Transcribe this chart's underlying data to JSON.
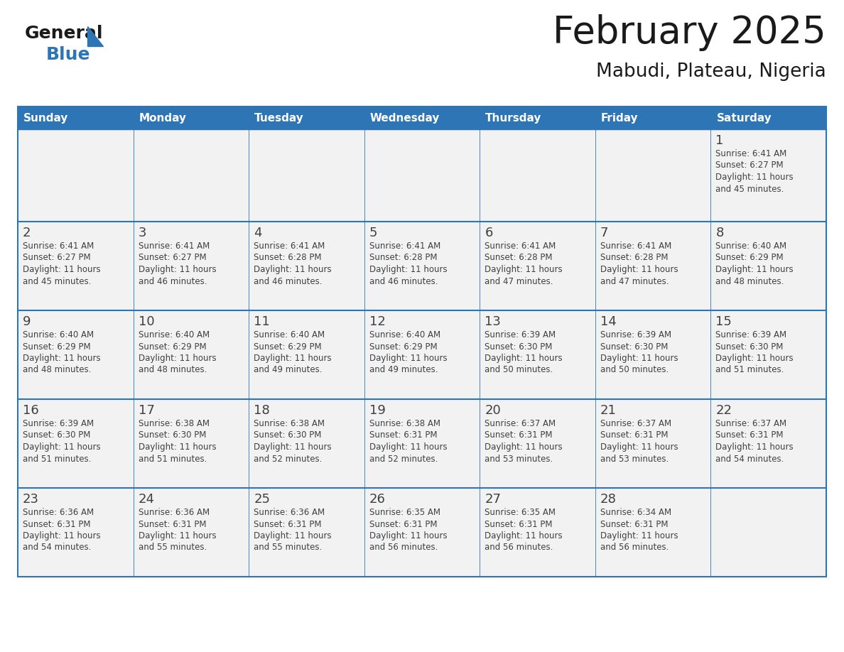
{
  "title": "February 2025",
  "subtitle": "Mabudi, Plateau, Nigeria",
  "days_of_week": [
    "Sunday",
    "Monday",
    "Tuesday",
    "Wednesday",
    "Thursday",
    "Friday",
    "Saturday"
  ],
  "header_bg": "#2E75B6",
  "header_text": "#FFFFFF",
  "cell_bg": "#F2F2F2",
  "cell_bg_white": "#FFFFFF",
  "border_color": "#2E75B6",
  "text_color": "#404040",
  "day_number_color": "#404040",
  "title_color": "#1a1a1a",
  "logo_black": "#1a1a1a",
  "logo_blue": "#2E75B6",
  "calendar_data": [
    [
      null,
      null,
      null,
      null,
      null,
      null,
      {
        "day": 1,
        "sunrise": "6:41 AM",
        "sunset": "6:27 PM",
        "daylight": "11 hours and 45 minutes."
      }
    ],
    [
      {
        "day": 2,
        "sunrise": "6:41 AM",
        "sunset": "6:27 PM",
        "daylight": "11 hours and 45 minutes."
      },
      {
        "day": 3,
        "sunrise": "6:41 AM",
        "sunset": "6:27 PM",
        "daylight": "11 hours and 46 minutes."
      },
      {
        "day": 4,
        "sunrise": "6:41 AM",
        "sunset": "6:28 PM",
        "daylight": "11 hours and 46 minutes."
      },
      {
        "day": 5,
        "sunrise": "6:41 AM",
        "sunset": "6:28 PM",
        "daylight": "11 hours and 46 minutes."
      },
      {
        "day": 6,
        "sunrise": "6:41 AM",
        "sunset": "6:28 PM",
        "daylight": "11 hours and 47 minutes."
      },
      {
        "day": 7,
        "sunrise": "6:41 AM",
        "sunset": "6:28 PM",
        "daylight": "11 hours and 47 minutes."
      },
      {
        "day": 8,
        "sunrise": "6:40 AM",
        "sunset": "6:29 PM",
        "daylight": "11 hours and 48 minutes."
      }
    ],
    [
      {
        "day": 9,
        "sunrise": "6:40 AM",
        "sunset": "6:29 PM",
        "daylight": "11 hours and 48 minutes."
      },
      {
        "day": 10,
        "sunrise": "6:40 AM",
        "sunset": "6:29 PM",
        "daylight": "11 hours and 48 minutes."
      },
      {
        "day": 11,
        "sunrise": "6:40 AM",
        "sunset": "6:29 PM",
        "daylight": "11 hours and 49 minutes."
      },
      {
        "day": 12,
        "sunrise": "6:40 AM",
        "sunset": "6:29 PM",
        "daylight": "11 hours and 49 minutes."
      },
      {
        "day": 13,
        "sunrise": "6:39 AM",
        "sunset": "6:30 PM",
        "daylight": "11 hours and 50 minutes."
      },
      {
        "day": 14,
        "sunrise": "6:39 AM",
        "sunset": "6:30 PM",
        "daylight": "11 hours and 50 minutes."
      },
      {
        "day": 15,
        "sunrise": "6:39 AM",
        "sunset": "6:30 PM",
        "daylight": "11 hours and 51 minutes."
      }
    ],
    [
      {
        "day": 16,
        "sunrise": "6:39 AM",
        "sunset": "6:30 PM",
        "daylight": "11 hours and 51 minutes."
      },
      {
        "day": 17,
        "sunrise": "6:38 AM",
        "sunset": "6:30 PM",
        "daylight": "11 hours and 51 minutes."
      },
      {
        "day": 18,
        "sunrise": "6:38 AM",
        "sunset": "6:30 PM",
        "daylight": "11 hours and 52 minutes."
      },
      {
        "day": 19,
        "sunrise": "6:38 AM",
        "sunset": "6:31 PM",
        "daylight": "11 hours and 52 minutes."
      },
      {
        "day": 20,
        "sunrise": "6:37 AM",
        "sunset": "6:31 PM",
        "daylight": "11 hours and 53 minutes."
      },
      {
        "day": 21,
        "sunrise": "6:37 AM",
        "sunset": "6:31 PM",
        "daylight": "11 hours and 53 minutes."
      },
      {
        "day": 22,
        "sunrise": "6:37 AM",
        "sunset": "6:31 PM",
        "daylight": "11 hours and 54 minutes."
      }
    ],
    [
      {
        "day": 23,
        "sunrise": "6:36 AM",
        "sunset": "6:31 PM",
        "daylight": "11 hours and 54 minutes."
      },
      {
        "day": 24,
        "sunrise": "6:36 AM",
        "sunset": "6:31 PM",
        "daylight": "11 hours and 55 minutes."
      },
      {
        "day": 25,
        "sunrise": "6:36 AM",
        "sunset": "6:31 PM",
        "daylight": "11 hours and 55 minutes."
      },
      {
        "day": 26,
        "sunrise": "6:35 AM",
        "sunset": "6:31 PM",
        "daylight": "11 hours and 56 minutes."
      },
      {
        "day": 27,
        "sunrise": "6:35 AM",
        "sunset": "6:31 PM",
        "daylight": "11 hours and 56 minutes."
      },
      {
        "day": 28,
        "sunrise": "6:34 AM",
        "sunset": "6:31 PM",
        "daylight": "11 hours and 56 minutes."
      },
      null
    ]
  ]
}
